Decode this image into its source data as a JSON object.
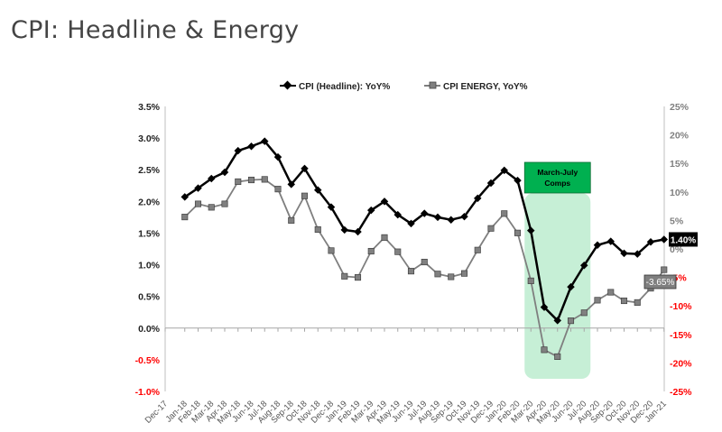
{
  "page_title": "CPI: Headline & Energy",
  "chart_data": {
    "type": "line",
    "title": "CPI: Headline & Energy",
    "categories": [
      "Dec-17",
      "Jan-18",
      "Feb-18",
      "Mar-18",
      "Apr-18",
      "May-18",
      "Jun-18",
      "Jul-18",
      "Aug-18",
      "Sep-18",
      "Oct-18",
      "Nov-18",
      "Dec-18",
      "Jan-19",
      "Feb-19",
      "Mar-19",
      "Apr-19",
      "May-19",
      "Jun-19",
      "Jul-19",
      "Aug-19",
      "Sep-19",
      "Oct-19",
      "Nov-19",
      "Dec-19",
      "Jan-20",
      "Feb-20",
      "Mar-20",
      "Apr-20",
      "May-20",
      "Jun-20",
      "Jul-20",
      "Aug-20",
      "Sep-20",
      "Oct-20",
      "Nov-20",
      "Dec-20",
      "Jan-21"
    ],
    "series": [
      {
        "name": "CPI (Headline): YoY%",
        "axis": "left",
        "color": "#000000",
        "marker": "diamond",
        "values": [
          null,
          2.07,
          2.21,
          2.36,
          2.46,
          2.8,
          2.87,
          2.95,
          2.7,
          2.27,
          2.52,
          2.18,
          1.91,
          1.55,
          1.52,
          1.86,
          2.0,
          1.79,
          1.65,
          1.81,
          1.75,
          1.71,
          1.76,
          2.05,
          2.29,
          2.49,
          2.33,
          1.54,
          0.33,
          0.12,
          0.65,
          0.99,
          1.31,
          1.37,
          1.18,
          1.17,
          1.36,
          1.4
        ],
        "end_label": "1.40%"
      },
      {
        "name": "CPI ENERGY,  YoY%",
        "axis": "right",
        "color": "#7f7f7f",
        "marker": "square",
        "values": [
          null,
          5.6,
          7.9,
          7.3,
          7.9,
          11.8,
          12.1,
          12.2,
          10.5,
          5.0,
          9.3,
          3.4,
          -0.3,
          -4.8,
          -5.0,
          -0.4,
          2.0,
          -0.5,
          -3.9,
          -2.3,
          -4.4,
          -4.9,
          -4.3,
          -0.2,
          3.6,
          6.2,
          2.8,
          -5.6,
          -17.7,
          -18.9,
          -12.6,
          -11.2,
          -9.0,
          -7.6,
          -9.1,
          -9.4,
          -6.9,
          -3.65
        ],
        "end_label": "-3.65%"
      }
    ],
    "left_axis": {
      "ylim": [
        -1.0,
        3.5
      ],
      "ticks": [
        "3.5%",
        "3.0%",
        "2.5%",
        "2.0%",
        "1.5%",
        "1.0%",
        "0.5%",
        "0.0%",
        "-0.5%",
        "-1.0%"
      ],
      "tick_values": [
        3.5,
        3.0,
        2.5,
        2.0,
        1.5,
        1.0,
        0.5,
        0.0,
        -0.5,
        -1.0
      ]
    },
    "right_axis": {
      "ylim": [
        -25,
        25
      ],
      "ticks": [
        "25%",
        "20%",
        "15%",
        "10%",
        "5%",
        "0%",
        "-5%",
        "-10%",
        "-15%",
        "-20%",
        "-25%"
      ],
      "tick_values": [
        25,
        20,
        15,
        10,
        5,
        0,
        -5,
        -10,
        -15,
        -20,
        -25
      ]
    },
    "negative_tick_color": "#ff0000",
    "legend_position": "top-center",
    "annotation": {
      "text_line1": "March-July",
      "text_line2": "Comps",
      "from": "Mar-20",
      "to": "Jul-20",
      "box_color": "#00b050",
      "shade_color": "#c6efd6"
    }
  }
}
